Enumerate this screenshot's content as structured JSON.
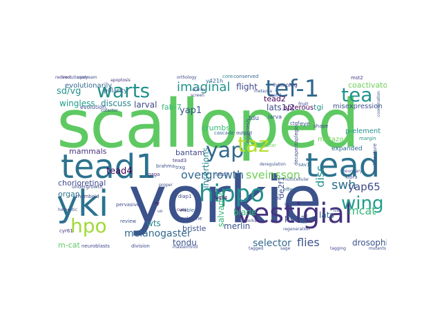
{
  "words": [
    {
      "text": "scalloped",
      "color": "#5ec962"
    },
    {
      "text": "yorkie",
      "color": "#3b528b"
    },
    {
      "text": "tead1",
      "color": "#2c728e"
    },
    {
      "text": "tead",
      "color": "#2c728e"
    },
    {
      "text": "yki",
      "color": "#2c728e"
    },
    {
      "text": "hippo",
      "color": "#21918c"
    },
    {
      "text": "vestigial",
      "color": "#46327e"
    },
    {
      "text": "tef-1",
      "color": "#31688e"
    },
    {
      "text": "warts",
      "color": "#21918c"
    },
    {
      "text": "tea",
      "color": "#21918c"
    },
    {
      "text": "yap",
      "color": "#31688e"
    },
    {
      "text": "taz",
      "color": "#b5de2b"
    },
    {
      "text": "hpo",
      "color": "#a0da39"
    },
    {
      "text": "wing",
      "color": "#1f9e89"
    },
    {
      "text": "swh",
      "color": "#2c728e"
    },
    {
      "text": "yap65",
      "color": "#3e4989"
    },
    {
      "text": "imaginal",
      "color": "#21918c"
    },
    {
      "text": "overgrowth",
      "color": "#31688e"
    },
    {
      "text": "sveinsson",
      "color": "#6ece58"
    },
    {
      "text": "disc",
      "color": "#21918c"
    },
    {
      "text": "mcat",
      "color": "#35b779"
    },
    {
      "text": "selector",
      "color": "#31688e"
    },
    {
      "text": "flies",
      "color": "#3b528b"
    },
    {
      "text": "melanogaster",
      "color": "#31688e"
    },
    {
      "text": "drosophila",
      "color": "#3b528b"
    },
    {
      "text": "flight",
      "color": "#3e4989"
    },
    {
      "text": "lats1/2",
      "color": "#3e4989"
    },
    {
      "text": "tead2",
      "color": "#440154"
    },
    {
      "text": "sd/vg",
      "color": "#21918c"
    },
    {
      "text": "wingless",
      "color": "#1f9e89"
    },
    {
      "text": "discuss",
      "color": "#26828e"
    },
    {
      "text": "larval",
      "color": "#3e4989"
    },
    {
      "text": "fab-7",
      "color": "#35b779"
    },
    {
      "text": "yap1",
      "color": "#3b528b"
    },
    {
      "text": "mammals",
      "color": "#46327e"
    },
    {
      "text": "tead4",
      "color": "#440154"
    },
    {
      "text": "bantam",
      "color": "#3e4989"
    },
    {
      "text": "insertions",
      "color": "#26828e"
    },
    {
      "text": "crumbs",
      "color": "#35b779"
    },
    {
      "text": "chorioretinal",
      "color": "#3e4989"
    },
    {
      "text": "organ",
      "color": "#2c728e"
    },
    {
      "text": "merlin",
      "color": "#3b528b"
    },
    {
      "text": "salvador",
      "color": "#35b779"
    },
    {
      "text": "pupal",
      "color": "#3b528b"
    },
    {
      "text": "blade",
      "color": "#35b779"
    },
    {
      "text": "bristle",
      "color": "#3b528b"
    },
    {
      "text": "wts",
      "color": "#26828e"
    },
    {
      "text": "tondu",
      "color": "#3b528b"
    },
    {
      "text": "m-cat",
      "color": "#5ec962"
    },
    {
      "text": "evolutionarily",
      "color": "#31688e"
    },
    {
      "text": "coactivator",
      "color": "#6ece58"
    },
    {
      "text": "tgi",
      "color": "#21918c"
    },
    {
      "text": "misexpression",
      "color": "#3b528b"
    },
    {
      "text": "apterous",
      "color": "#440154"
    },
    {
      "text": "lats",
      "color": "#31688e"
    },
    {
      "text": "de2f1",
      "color": "#3b528b"
    },
    {
      "text": "p-element",
      "color": "#21918c"
    },
    {
      "text": "metazoan",
      "color": "#6ece58"
    },
    {
      "text": "expanded",
      "color": "#31688e"
    },
    {
      "text": "polarity",
      "color": "#31688e"
    },
    {
      "text": "evolution",
      "color": "#3e4989"
    },
    {
      "text": "tdu",
      "color": "#3b528b"
    },
    {
      "text": "y421h",
      "color": "#31688e"
    },
    {
      "text": "homolog",
      "color": "#3e4989"
    },
    {
      "text": "core",
      "color": "#26828e"
    },
    {
      "text": "conserved",
      "color": "#31688e"
    },
    {
      "text": "larva",
      "color": "#3b528b"
    },
    {
      "text": "cascade",
      "color": "#31688e"
    },
    {
      "text": "output",
      "color": "#3e4989"
    },
    {
      "text": "instar",
      "color": "#6ece58"
    },
    {
      "text": "eye",
      "color": "#3b528b"
    },
    {
      "text": "shape",
      "color": "#3e4989"
    },
    {
      "text": "fruit",
      "color": "#3e4989"
    },
    {
      "text": "tead3",
      "color": "#46327e"
    },
    {
      "text": "lats2",
      "color": "#3b528b"
    },
    {
      "text": "sav1",
      "color": "#31688e"
    },
    {
      "text": "vgll4",
      "color": "#440154"
    },
    {
      "text": "polytene",
      "color": "#3e4989"
    },
    {
      "text": "viable",
      "color": "#31688e"
    },
    {
      "text": "diap1",
      "color": "#3e4989"
    },
    {
      "text": "kibra",
      "color": "#3b528b"
    },
    {
      "text": "effector",
      "color": "#31688e"
    },
    {
      "text": "isc",
      "color": "#3b528b"
    },
    {
      "text": "margin",
      "color": "#21918c"
    },
    {
      "text": "cyr61",
      "color": "#46327e"
    },
    {
      "text": "review",
      "color": "#3b528b"
    },
    {
      "text": "division",
      "color": "#3e4989"
    },
    {
      "text": "neuroblasts",
      "color": "#3e4989"
    },
    {
      "text": "brahma",
      "color": "#3b528b"
    },
    {
      "text": "rhomboid",
      "color": "#3e4989"
    },
    {
      "text": "pervasive",
      "color": "#3e4989"
    },
    {
      "text": "trxg",
      "color": "#3b528b"
    },
    {
      "text": "gaga",
      "color": "#46327e"
    },
    {
      "text": "undergrowth",
      "color": "#3e4989"
    },
    {
      "text": "architecture",
      "color": "#3b528b"
    },
    {
      "text": "wwwww",
      "color": "#3e4989"
    },
    {
      "text": "evolutionary",
      "color": "#3e4989"
    },
    {
      "text": "orthology",
      "color": "#3e4989"
    },
    {
      "text": "mst2",
      "color": "#46327e"
    },
    {
      "text": "regeneration",
      "color": "#3b528b"
    },
    {
      "text": "upstream",
      "color": "#3e4989"
    },
    {
      "text": "redirect",
      "color": "#46327e"
    },
    {
      "text": "scrnm",
      "color": "#3e4989"
    },
    {
      "text": "ctgf",
      "color": "#3e4989"
    },
    {
      "text": "gland",
      "color": "#3b528b"
    },
    {
      "text": "boundary",
      "color": "#3b528b"
    },
    {
      "text": "cues",
      "color": "#440154"
    },
    {
      "text": "mastermind",
      "color": "#3e4989"
    },
    {
      "text": "sage",
      "color": "#3e4989"
    },
    {
      "text": "ry",
      "color": "#440154"
    },
    {
      "text": "uo",
      "color": "#3b528b"
    },
    {
      "text": "proper",
      "color": "#3e4989"
    },
    {
      "text": "ife",
      "color": "#3b528b"
    },
    {
      "text": "networks",
      "color": "#3e4989"
    },
    {
      "text": "multicellular",
      "color": "#3b528b"
    },
    {
      "text": "deregulation",
      "color": "#3b528b"
    },
    {
      "text": "decapentaplegic",
      "color": "#3e4989"
    },
    {
      "text": "oogenesis",
      "color": "#3e4989"
    },
    {
      "text": "cofactor",
      "color": "#3b528b"
    },
    {
      "text": "matr1",
      "color": "#3e4989"
    },
    {
      "text": "metazoa",
      "color": "#3b528b"
    },
    {
      "text": "screen",
      "color": "#3e4989"
    },
    {
      "text": "apoptosis",
      "color": "#46327e"
    },
    {
      "text": "homeotic",
      "color": "#3e4989"
    },
    {
      "text": "mutants",
      "color": "#3e4989"
    },
    {
      "text": "tagged",
      "color": "#3e4989"
    },
    {
      "text": "tagging",
      "color": "#3e4989"
    },
    {
      "text": "coordination",
      "color": "#3b528b"
    }
  ]
}
